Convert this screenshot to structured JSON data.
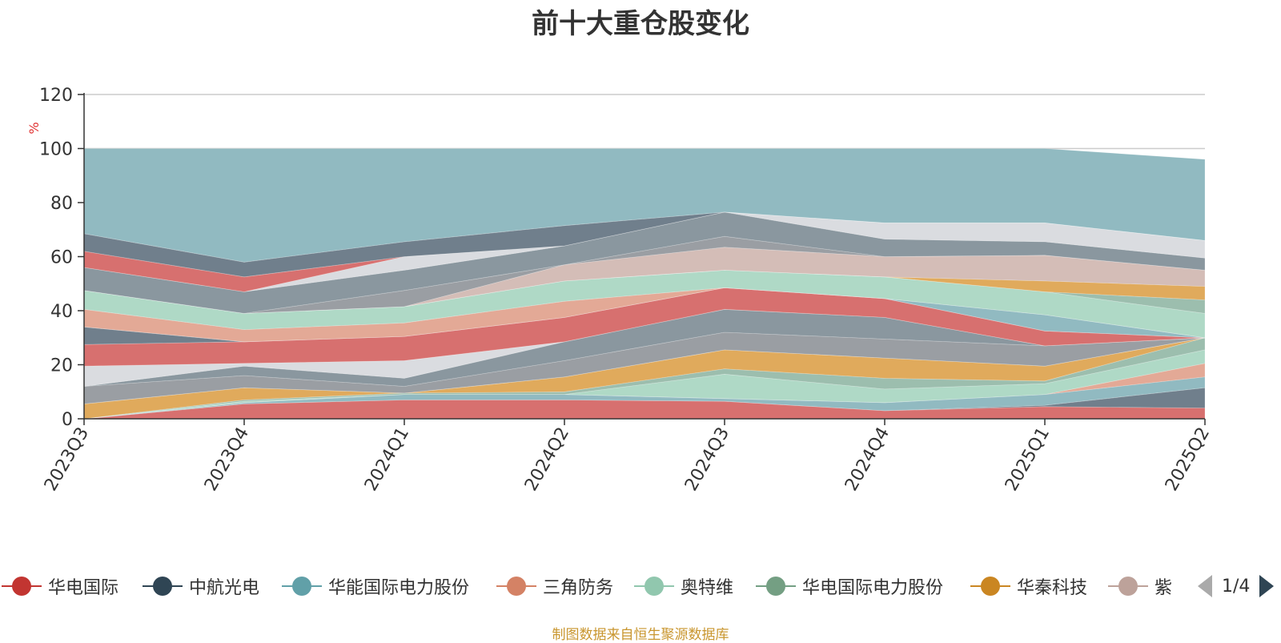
{
  "chart_data": {
    "type": "area",
    "title": "前十大重仓股变化",
    "ylabel": "%",
    "ylim": [
      0,
      120
    ],
    "yticks": [
      0,
      20,
      40,
      60,
      80,
      100,
      120
    ],
    "grid": true,
    "legend_position": "bottom",
    "categories": [
      "2023Q3",
      "2023Q4",
      "2024Q1",
      "2024Q2",
      "2024Q3",
      "2024Q4",
      "2025Q1",
      "2025Q2"
    ],
    "layers": [
      {
        "color": "#d7706f",
        "base": [
          0,
          0,
          0,
          0,
          0,
          0,
          0,
          0
        ],
        "top": [
          0,
          5.5,
          7,
          7,
          6.5,
          3,
          4.5,
          4
        ]
      },
      {
        "color": "#707f8c",
        "base": [
          0,
          5.5,
          7,
          7,
          6.5,
          3,
          4.5,
          4
        ],
        "top": [
          0,
          5.5,
          7,
          7,
          6.5,
          3,
          5,
          11.5
        ]
      },
      {
        "color": "#91bac1",
        "base": [
          0,
          5.5,
          7,
          7,
          6.5,
          3,
          5,
          11.5
        ],
        "top": [
          0,
          6,
          9,
          9,
          7.5,
          6,
          9,
          15.5
        ]
      },
      {
        "color": "#e3a996",
        "base": [
          0,
          6,
          9,
          9,
          7.5,
          6,
          9,
          15.5
        ],
        "top": [
          0,
          6,
          9,
          9,
          7.5,
          6,
          9,
          20.5
        ]
      },
      {
        "color": "#afd9c6",
        "base": [
          0,
          6,
          9,
          9,
          7.5,
          6,
          9,
          20.5
        ],
        "top": [
          0,
          6.5,
          9,
          9,
          16.5,
          11,
          13,
          25.5
        ]
      },
      {
        "color": "#9cbeae",
        "base": [
          0,
          6.5,
          9,
          9,
          16.5,
          11,
          13,
          25.5
        ],
        "top": [
          0,
          7,
          9.5,
          10,
          18.5,
          15,
          14,
          30
        ]
      },
      {
        "color": "#e0aa5c",
        "base": [
          0,
          7,
          9.5,
          10,
          18.5,
          15,
          14,
          30
        ],
        "top": [
          5.5,
          11.5,
          9.5,
          15.5,
          25.5,
          22.5,
          19.5,
          30
        ]
      },
      {
        "color": "#d4bdb7",
        "base": [
          5.5,
          11.5,
          9.5,
          15.5,
          25.5,
          22.5,
          19.5,
          30
        ],
        "top": [
          5.5,
          11.5,
          9.5,
          15.5,
          25.5,
          22.5,
          19.5,
          30
        ]
      },
      {
        "color": "#9a9ea3",
        "base": [
          5.5,
          11.5,
          9.5,
          15.5,
          25.5,
          22.5,
          19.5,
          30
        ],
        "top": [
          12,
          16,
          12,
          21.5,
          32,
          29.5,
          27,
          30
        ]
      },
      {
        "color": "#8a979f",
        "base": [
          12,
          16,
          12,
          21.5,
          32,
          29.5,
          27,
          30
        ],
        "top": [
          12,
          19.5,
          15,
          28.5,
          40.5,
          37.5,
          27,
          30
        ]
      },
      {
        "color": "#dadce0",
        "base": [
          12,
          19.5,
          15,
          28.5,
          40.5,
          37.5,
          27,
          30
        ],
        "top": [
          19.5,
          20.5,
          21.5,
          28.5,
          40.5,
          37.5,
          27,
          30
        ]
      },
      {
        "color": "#d7706f",
        "base": [
          19.5,
          20.5,
          21.5,
          28.5,
          40.5,
          37.5,
          27,
          30
        ],
        "top": [
          27.5,
          28.5,
          30.5,
          37.5,
          48.5,
          44.5,
          32.5,
          30
        ]
      },
      {
        "color": "#707f8c",
        "base": [
          27.5,
          28.5,
          30.5,
          37.5,
          48.5,
          44.5,
          32.5,
          30
        ],
        "top": [
          34,
          28.5,
          30.5,
          37.5,
          48.5,
          44.5,
          32.5,
          30
        ]
      },
      {
        "color": "#91bac1",
        "base": [
          34,
          28.5,
          30.5,
          37.5,
          48.5,
          44.5,
          32.5,
          30
        ],
        "top": [
          34,
          28.5,
          30.5,
          37.5,
          48.5,
          44.5,
          38.5,
          30
        ]
      },
      {
        "color": "#e3a996",
        "base": [
          34,
          28.5,
          30.5,
          37.5,
          48.5,
          44.5,
          38.5,
          30
        ],
        "top": [
          40.5,
          33,
          35.5,
          43.5,
          48.5,
          44.5,
          38.5,
          30
        ]
      },
      {
        "color": "#afd9c6",
        "base": [
          40.5,
          33,
          35.5,
          43.5,
          48.5,
          44.5,
          38.5,
          30
        ],
        "top": [
          47.5,
          39,
          41.5,
          51,
          55,
          52.5,
          47,
          39
        ]
      },
      {
        "color": "#9cbeae",
        "base": [
          47.5,
          39,
          41.5,
          51,
          55,
          52.5,
          47,
          39
        ],
        "top": [
          47.5,
          39,
          41.5,
          51,
          55,
          52.5,
          47,
          44
        ]
      },
      {
        "color": "#e0aa5c",
        "base": [
          47.5,
          39,
          41.5,
          51,
          55,
          52.5,
          47,
          44
        ],
        "top": [
          47.5,
          39,
          41.5,
          51,
          55,
          52.5,
          51,
          49
        ]
      },
      {
        "color": "#d4bdb7",
        "base": [
          47.5,
          39,
          41.5,
          51,
          55,
          52.5,
          51,
          49
        ],
        "top": [
          47.5,
          39,
          41.5,
          57,
          63.5,
          60,
          60.5,
          55
        ]
      },
      {
        "color": "#9a9ea3",
        "base": [
          47.5,
          39,
          41.5,
          57,
          63.5,
          60,
          60.5,
          55
        ],
        "top": [
          47.5,
          39,
          47.5,
          57,
          67.5,
          60,
          60.5,
          55
        ]
      },
      {
        "color": "#8a979f",
        "base": [
          47.5,
          39,
          47.5,
          57,
          67.5,
          60,
          60.5,
          55
        ],
        "top": [
          56,
          47,
          55,
          64,
          76.5,
          66.5,
          65.5,
          59.5
        ]
      },
      {
        "color": "#dadce0",
        "base": [
          56,
          47,
          55,
          64,
          76.5,
          66.5,
          65.5,
          59.5
        ],
        "top": [
          56,
          47,
          60,
          64,
          76.5,
          72.5,
          72.5,
          66
        ]
      },
      {
        "color": "#d7706f",
        "base": [
          56,
          47,
          60,
          64,
          76.5,
          72.5,
          72.5,
          66
        ],
        "top": [
          62,
          52.5,
          60,
          64,
          76.5,
          72.5,
          72.5,
          66
        ]
      },
      {
        "color": "#707f8c",
        "base": [
          62,
          52.5,
          60,
          64,
          76.5,
          72.5,
          72.5,
          66
        ],
        "top": [
          68.5,
          58,
          65.5,
          71.5,
          76.5,
          72.5,
          72.5,
          66
        ]
      },
      {
        "color": "#91bac1",
        "base": [
          68.5,
          58,
          65.5,
          71.5,
          76.5,
          72.5,
          72.5,
          66
        ],
        "top": [
          100,
          100,
          100,
          100,
          100,
          100,
          100,
          96
        ]
      }
    ],
    "legend": [
      {
        "name": "华电国际",
        "color": "#c23531"
      },
      {
        "name": "中航光电",
        "color": "#2f4554"
      },
      {
        "name": "华能国际电力股份",
        "color": "#61a0a8"
      },
      {
        "name": "三角防务",
        "color": "#d48265"
      },
      {
        "name": "奥特维",
        "color": "#91c7ae"
      },
      {
        "name": "华电国际电力股份",
        "color": "#749f83"
      },
      {
        "name": "华秦科技",
        "color": "#ca8622"
      },
      {
        "name": "紫",
        "color": "#bda29a"
      }
    ],
    "legend_page": "1/4"
  },
  "source_note": "制图数据来自恒生聚源数据库"
}
